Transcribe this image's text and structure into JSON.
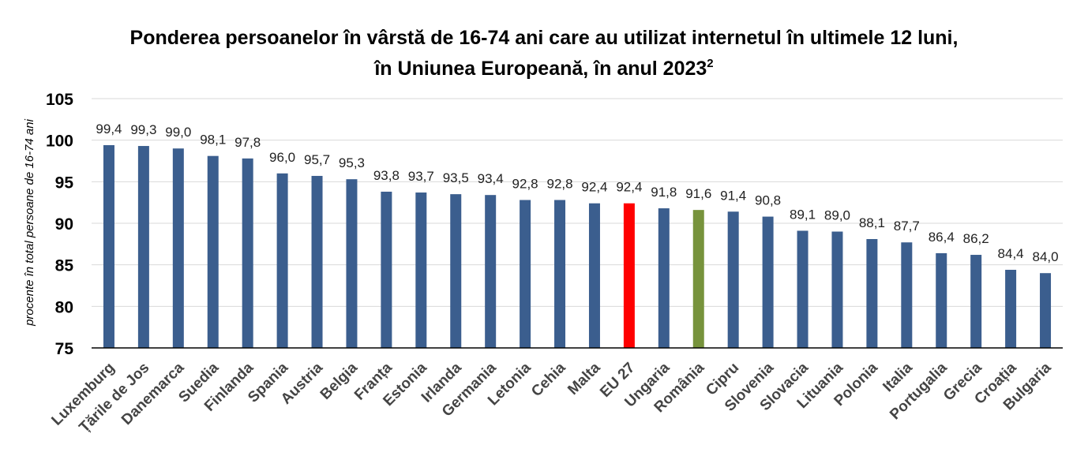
{
  "chart_data": {
    "type": "bar",
    "title": "Ponderea persoanelor în vârstă de 16-74 ani care au utilizat internetul în ultimele 12 luni,",
    "subtitle": "în Uniunea Europeană, în anul 2023",
    "subtitle_note": "2",
    "ylabel": "procente în total persoane de  16-74 ani",
    "xlabel": "",
    "ylim": [
      75,
      105
    ],
    "yticks": [
      75,
      80,
      85,
      90,
      95,
      100,
      105
    ],
    "grid": true,
    "legend": "none",
    "categories": [
      "Luxemburg",
      "Țările de Jos",
      "Danemarca",
      "Suedia",
      "Finlanda",
      "Spania",
      "Austria",
      "Belgia",
      "Franța",
      "Estonia",
      "Irlanda",
      "Germania",
      "Letonia",
      "Cehia",
      "Malta",
      "EU 27",
      "Ungaria",
      "România",
      "Cipru",
      "Slovenia",
      "Slovacia",
      "Lituania",
      "Polonia",
      "Italia",
      "Portugalia",
      "Grecia",
      "Croația",
      "Bulgaria"
    ],
    "values": [
      99.4,
      99.3,
      99.0,
      98.1,
      97.8,
      96.0,
      95.7,
      95.3,
      93.8,
      93.7,
      93.5,
      93.4,
      92.8,
      92.8,
      92.4,
      92.4,
      91.8,
      91.6,
      91.4,
      90.8,
      89.1,
      89.0,
      88.1,
      87.7,
      86.4,
      86.2,
      84.4,
      84.0
    ],
    "value_labels": [
      "99,4",
      "99,3",
      "99,0",
      "98,1",
      "97,8",
      "96,0",
      "95,7",
      "95,3",
      "93,8",
      "93,7",
      "93,5",
      "93,4",
      "92,8",
      "92,8",
      "92,4",
      "92,4",
      "91,8",
      "91,6",
      "91,4",
      "90,8",
      "89,1",
      "89,0",
      "88,1",
      "87,7",
      "86,4",
      "86,2",
      "84,4",
      "84,0"
    ],
    "colors": {
      "default": "#3b5e8e",
      "highlight": {
        "EU 27": "#ff0000",
        "România": "#77933c"
      },
      "grid": "#d9d9d9",
      "axis": "#000000"
    }
  }
}
